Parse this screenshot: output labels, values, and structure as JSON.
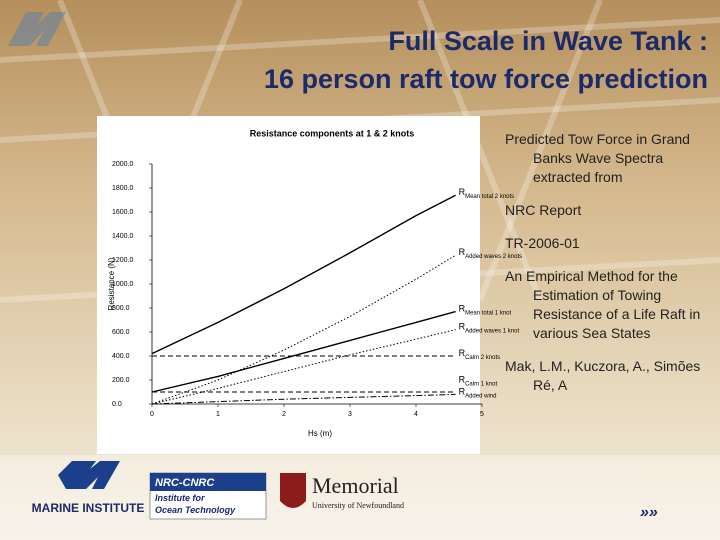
{
  "header": {
    "title_lines": [
      "Full Scale in Wave Tank :",
      "16 person raft tow force prediction"
    ]
  },
  "chart_data": {
    "type": "line",
    "title": "Resistance components at 1 & 2  knots",
    "x_label": "Hs (m)",
    "y_label": "Resistance (N)",
    "x": [
      0,
      1,
      2,
      3,
      4,
      4.6
    ],
    "xlim": [
      0,
      5
    ],
    "xticks": [
      0,
      1,
      2,
      3,
      4,
      5
    ],
    "ylim": [
      0,
      2000
    ],
    "yticks": [
      {
        "value": 0,
        "label": "0.0"
      },
      {
        "value": 200,
        "label": "200.0"
      },
      {
        "value": 400,
        "label": "400.0"
      },
      {
        "value": 600,
        "label": "600.0"
      },
      {
        "value": 800,
        "label": "800.0"
      },
      {
        "value": 1000,
        "label": "1000.0"
      },
      {
        "value": 1200,
        "label": "1200.0"
      },
      {
        "value": 1400,
        "label": "1400.0"
      },
      {
        "value": 1600,
        "label": "1600.0"
      },
      {
        "value": 1800,
        "label": "1800.0"
      },
      {
        "value": 2000,
        "label": "2000.0"
      }
    ],
    "series": [
      {
        "name": "RMean total 2 knots",
        "color": "#000000",
        "style": "solid",
        "values": [
          420,
          680,
          960,
          1260,
          1570,
          1740
        ]
      },
      {
        "name": "RAdded waves 2 knots",
        "color": "#000000",
        "style": "dotted",
        "values": [
          0,
          200,
          450,
          730,
          1040,
          1240
        ]
      },
      {
        "name": "RMean total 1 knot",
        "color": "#000000",
        "style": "solid",
        "values": [
          100,
          230,
          380,
          530,
          680,
          770
        ]
      },
      {
        "name": "RAdded waves 1 knot",
        "color": "#000000",
        "style": "dotted",
        "values": [
          0,
          130,
          270,
          410,
          540,
          620
        ]
      },
      {
        "name": "RCalm 2 knots",
        "color": "#000000",
        "style": "dashed",
        "values": [
          400,
          400,
          400,
          400,
          400,
          400
        ]
      },
      {
        "name": "RCalm 1 knot",
        "color": "#000000",
        "style": "dashed",
        "values": [
          100,
          100,
          100,
          100,
          100,
          100
        ]
      },
      {
        "name": "RAdded wind",
        "color": "#000000",
        "style": "dashdot",
        "values": [
          0,
          20,
          40,
          55,
          70,
          80
        ]
      }
    ]
  },
  "text": {
    "paragraphs": [
      "Predicted Tow Force in Grand Banks Wave Spectra extracted from",
      "NRC Report",
      "TR-2006-01",
      "An Empirical Method for the Estimation of  Towing Resistance of a Life Raft in various Sea States",
      "Mak, L.M., Kuczora, A., Simões Ré, A"
    ]
  },
  "logos": {
    "mi": "MARINE INSTITUTE",
    "nrc": "NRC-CNRC",
    "iot_1": "Institute for",
    "iot_2": "Ocean Technology",
    "mun": "Memorial",
    "mun_sub": "University of Newfoundland"
  }
}
